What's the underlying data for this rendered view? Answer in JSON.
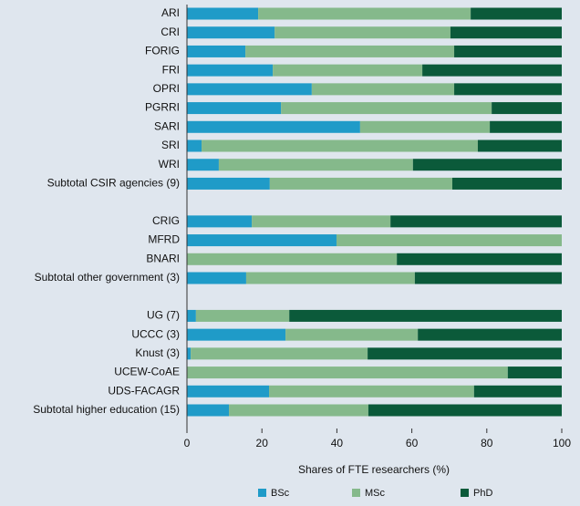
{
  "chart_data": {
    "type": "stacked-barh",
    "categories": [
      "ARI",
      "CRI",
      "FORIG",
      "FRI",
      "OPRI",
      "PGRRI",
      "SARI",
      "SRI",
      "WRI",
      "Subtotal CSIR agencies (9)",
      null,
      "CRIG",
      "MFRD",
      "BNARI",
      "Subtotal other government (3)",
      null,
      "UG (7)",
      "UCCC (3)",
      "Knust (3)",
      "UCEW-CoAE",
      "UDS-FACAGR",
      "Subtotal higher education (15)"
    ],
    "series": [
      {
        "name": "BSc",
        "color": "#1f9bc8",
        "values": [
          19,
          23.4,
          15.6,
          22.9,
          33.3,
          25.1,
          46.2,
          3.9,
          8.5,
          22.1,
          null,
          17.3,
          39.9,
          0,
          15.8,
          null,
          2.4,
          26.3,
          1,
          0,
          21.9,
          11.2
        ]
      },
      {
        "name": "MSc",
        "color": "#85b98b",
        "values": [
          56.7,
          46.9,
          55.7,
          39.9,
          38,
          56.2,
          34.6,
          73.7,
          51.8,
          48.7,
          null,
          37,
          60.1,
          56,
          45,
          null,
          24.9,
          35.3,
          47.2,
          85.6,
          54.7,
          37.2
        ]
      },
      {
        "name": "PhD",
        "color": "#0b5a3a",
        "values": [
          24.3,
          29.7,
          28.7,
          37.2,
          28.7,
          18.7,
          19.2,
          22.4,
          39.7,
          29.2,
          null,
          45.7,
          0,
          44,
          39.2,
          null,
          72.7,
          38.4,
          51.8,
          14.4,
          23.4,
          51.6
        ]
      }
    ],
    "xlabel": "Shares of FTE researchers (%)",
    "xlim": [
      0,
      100
    ],
    "xticks": [
      0,
      20,
      40,
      60,
      80,
      100
    ],
    "legend": "bottom"
  }
}
